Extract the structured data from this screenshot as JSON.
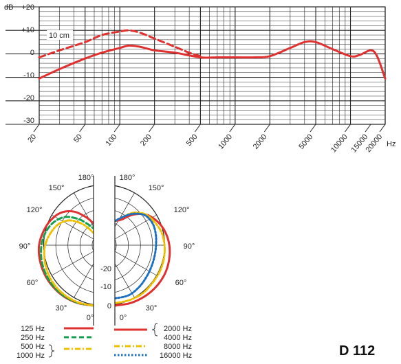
{
  "model_label": "D 112",
  "chart_data": [
    {
      "type": "line",
      "xscale": "log",
      "xlim": [
        20,
        20000
      ],
      "ylim": [
        -30,
        20
      ],
      "ylabel": "dB",
      "xlabel": "Hz",
      "y_ticks": [
        "+20",
        "+10",
        "0",
        "-10",
        "-20",
        "-30"
      ],
      "x_ticks": [
        "20",
        "50",
        "100",
        "200",
        "500",
        "1000",
        "2000",
        "5000",
        "10000",
        "15000",
        "20000"
      ],
      "x_tick_values": [
        20,
        50,
        100,
        200,
        500,
        1000,
        2000,
        5000,
        10000,
        15000,
        20000
      ],
      "series": [
        {
          "style": "solid",
          "color": "#e03030",
          "x": [
            20,
            30,
            50,
            70,
            100,
            120,
            150,
            200,
            300,
            500,
            700,
            1000,
            1500,
            2000,
            3000,
            4000,
            5000,
            7000,
            10000,
            12000,
            15000,
            17000,
            20000
          ],
          "y": [
            -10.5,
            -6.5,
            -2,
            0.5,
            2.5,
            3.5,
            3,
            1.5,
            0.5,
            -1.5,
            -1.5,
            -1.5,
            -1.5,
            -1,
            2.5,
            5,
            5,
            2,
            -1,
            -0.5,
            1.5,
            -1,
            -10.5
          ]
        },
        {
          "name": "10 cm",
          "style": "dashed",
          "color": "#e03030",
          "x": [
            20,
            30,
            50,
            70,
            100,
            120,
            150,
            200,
            300,
            400,
            500
          ],
          "y": [
            -1.5,
            1.5,
            5,
            8,
            9.5,
            10,
            9,
            6.5,
            3,
            0.5,
            -1
          ]
        }
      ]
    },
    {
      "type": "polar",
      "angle_labels": {
        "left": [
          "180°",
          "150°",
          "120°",
          "90°",
          "60°",
          "30°",
          "0°"
        ],
        "right": [
          "180°",
          "150°",
          "120°",
          "90°",
          "60°",
          "30°",
          "0°"
        ]
      },
      "radial_labels": [
        "-20",
        "-10",
        "0"
      ],
      "radial_range_db": [
        -25,
        0
      ],
      "angles_deg": [
        0,
        15,
        30,
        45,
        60,
        75,
        90,
        105,
        120,
        135,
        150,
        165,
        180
      ],
      "left": [
        {
          "freq_ids": [
            "125 Hz"
          ],
          "color": "#e03030",
          "style": "solid",
          "db": [
            0,
            -0.2,
            -0.5,
            -1,
            -1.5,
            -2,
            -2.5,
            -3.5,
            -4.5,
            -6,
            -9,
            -13,
            -16
          ]
        },
        {
          "freq_ids": [
            "250 Hz"
          ],
          "color": "#15a050",
          "style": "dashed",
          "db": [
            0,
            -0.3,
            -0.7,
            -1.3,
            -2,
            -2.7,
            -3.5,
            -4.5,
            -6,
            -8.5,
            -12.5,
            -16,
            -18
          ]
        },
        {
          "freq_ids": [
            "500 Hz",
            "1000 Hz"
          ],
          "color": "#f0c000",
          "style": "dashdot",
          "db": [
            0,
            -0.5,
            -1.2,
            -2,
            -3,
            -4,
            -5,
            -6.5,
            -8,
            -10.5,
            -14.5,
            -18,
            -20
          ]
        }
      ],
      "right": [
        {
          "freq_ids": [
            "2000 Hz",
            "4000 Hz"
          ],
          "color": "#e03030",
          "style": "solid",
          "db": [
            0,
            -0.2,
            -0.5,
            -0.8,
            -1.2,
            -1.8,
            -2.5,
            -3.5,
            -5,
            -7,
            -10.5,
            -14,
            -15
          ]
        },
        {
          "freq_ids": [
            "8000 Hz"
          ],
          "color": "#f0c000",
          "style": "dashdot",
          "db": [
            -1,
            -1.5,
            -2,
            -3,
            -3.5,
            -4,
            -4.5,
            -5,
            -6,
            -7,
            -9.5,
            -13,
            -15
          ]
        },
        {
          "freq_ids": [
            "16000 Hz"
          ],
          "color": "#1a6fc0",
          "style": "dotted",
          "db": [
            -3,
            -3.5,
            -5,
            -6.5,
            -7.5,
            -8,
            -8,
            -7.5,
            -7,
            -7.5,
            -10,
            -13,
            -15
          ]
        }
      ]
    }
  ],
  "legend": {
    "left": [
      {
        "labels": [
          "125 Hz"
        ],
        "color": "#e03030",
        "style": "solid"
      },
      {
        "labels": [
          "250 Hz"
        ],
        "color": "#15a050",
        "style": "dashed"
      },
      {
        "labels": [
          "500 Hz",
          "1000 Hz"
        ],
        "color": "#f0c000",
        "style": "dashdot"
      }
    ],
    "right": [
      {
        "labels": [
          "2000 Hz",
          "4000 Hz"
        ],
        "color": "#e03030",
        "style": "solid"
      },
      {
        "labels": [
          "8000 Hz"
        ],
        "color": "#f0c000",
        "style": "dashdot"
      },
      {
        "labels": [
          "16000 Hz"
        ],
        "color": "#1a6fc0",
        "style": "dotted"
      }
    ]
  }
}
